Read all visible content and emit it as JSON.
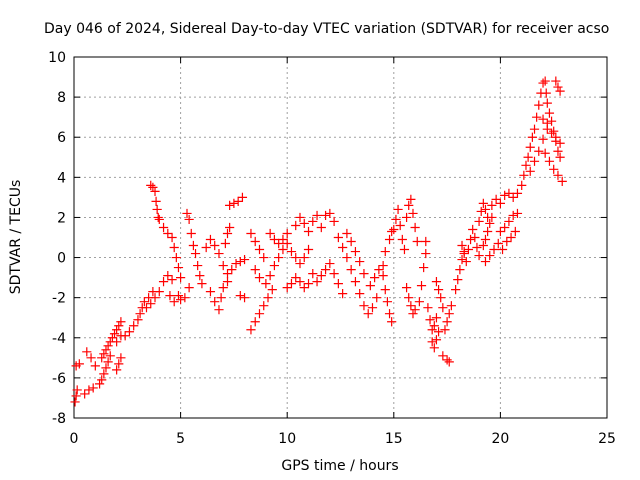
{
  "chart_data": {
    "type": "scatter",
    "title": "Day 046 of 2024, Sidereal Day-to-day VTEC variation (SDTVAR) for receiver acso",
    "xlabel": "GPS time / hours",
    "ylabel": "SDTVAR / TECUs",
    "xlim": [
      0,
      25
    ],
    "ylim": [
      -8,
      10
    ],
    "xticks": [
      0,
      5,
      10,
      15,
      20,
      25
    ],
    "yticks": [
      -8,
      -6,
      -4,
      -2,
      0,
      2,
      4,
      6,
      8,
      10
    ],
    "grid": true,
    "marker": "+",
    "color": "#ff0000",
    "series": [
      {
        "name": "SDTVAR",
        "points": [
          [
            0.05,
            -7.2
          ],
          [
            0.1,
            -6.9
          ],
          [
            0.15,
            -6.6
          ],
          [
            0.1,
            -5.4
          ],
          [
            0.25,
            -5.3
          ],
          [
            0.5,
            -6.8
          ],
          [
            0.7,
            -6.6
          ],
          [
            0.9,
            -6.5
          ],
          [
            0.6,
            -4.7
          ],
          [
            0.8,
            -5.0
          ],
          [
            1.0,
            -5.4
          ],
          [
            1.2,
            -6.3
          ],
          [
            1.3,
            -6.1
          ],
          [
            1.4,
            -5.8
          ],
          [
            1.5,
            -5.5
          ],
          [
            1.6,
            -5.2
          ],
          [
            1.7,
            -4.9
          ],
          [
            1.3,
            -5.0
          ],
          [
            1.4,
            -4.8
          ],
          [
            1.5,
            -4.6
          ],
          [
            1.6,
            -4.4
          ],
          [
            1.7,
            -4.2
          ],
          [
            1.8,
            -4.0
          ],
          [
            1.9,
            -3.8
          ],
          [
            2.0,
            -3.6
          ],
          [
            2.1,
            -3.4
          ],
          [
            2.2,
            -3.2
          ],
          [
            2.0,
            -4.2
          ],
          [
            2.2,
            -3.9
          ],
          [
            2.0,
            -5.6
          ],
          [
            2.1,
            -5.3
          ],
          [
            2.2,
            -5.0
          ],
          [
            2.4,
            -3.9
          ],
          [
            2.6,
            -3.7
          ],
          [
            2.8,
            -3.4
          ],
          [
            3.0,
            -3.1
          ],
          [
            3.1,
            -2.8
          ],
          [
            3.2,
            -2.5
          ],
          [
            3.3,
            -2.2
          ],
          [
            3.4,
            -2.5
          ],
          [
            3.6,
            -2.3
          ],
          [
            3.8,
            -2.0
          ],
          [
            3.5,
            -2.0
          ],
          [
            3.7,
            -1.7
          ],
          [
            3.6,
            3.6
          ],
          [
            3.7,
            3.5
          ],
          [
            3.8,
            3.3
          ],
          [
            3.85,
            2.8
          ],
          [
            3.9,
            2.4
          ],
          [
            3.95,
            2.0
          ],
          [
            4.0,
            1.9
          ],
          [
            4.2,
            1.5
          ],
          [
            4.4,
            1.2
          ],
          [
            4.6,
            1.0
          ],
          [
            4.7,
            0.5
          ],
          [
            4.8,
            0.0
          ],
          [
            4.9,
            -0.5
          ],
          [
            5.0,
            -1.0
          ],
          [
            4.0,
            -1.7
          ],
          [
            4.2,
            -1.2
          ],
          [
            4.4,
            -0.9
          ],
          [
            4.6,
            -1.1
          ],
          [
            4.5,
            -1.9
          ],
          [
            4.7,
            -2.2
          ],
          [
            4.9,
            -1.9
          ],
          [
            5.0,
            -2.1
          ],
          [
            5.2,
            -2.0
          ],
          [
            5.4,
            -1.5
          ],
          [
            5.3,
            2.2
          ],
          [
            5.4,
            1.9
          ],
          [
            5.5,
            1.2
          ],
          [
            5.6,
            0.6
          ],
          [
            5.7,
            0.2
          ],
          [
            5.8,
            -0.4
          ],
          [
            5.9,
            -0.9
          ],
          [
            6.0,
            -1.3
          ],
          [
            6.2,
            0.5
          ],
          [
            6.4,
            0.9
          ],
          [
            6.6,
            0.6
          ],
          [
            6.8,
            0.2
          ],
          [
            6.4,
            -1.7
          ],
          [
            6.6,
            -2.2
          ],
          [
            6.8,
            -2.6
          ],
          [
            6.9,
            -2.0
          ],
          [
            7.0,
            -1.5
          ],
          [
            7.2,
            -1.2
          ],
          [
            7.1,
            0.7
          ],
          [
            7.2,
            1.2
          ],
          [
            7.3,
            1.5
          ],
          [
            7.0,
            -0.4
          ],
          [
            7.2,
            -0.8
          ],
          [
            7.4,
            -0.6
          ],
          [
            7.3,
            2.6
          ],
          [
            7.5,
            2.7
          ],
          [
            7.7,
            2.8
          ],
          [
            7.9,
            3.0
          ],
          [
            7.6,
            -0.3
          ],
          [
            7.8,
            -0.2
          ],
          [
            8.0,
            -0.1
          ],
          [
            7.8,
            -1.9
          ],
          [
            8.0,
            -2.0
          ],
          [
            8.3,
            1.2
          ],
          [
            8.5,
            0.8
          ],
          [
            8.7,
            0.4
          ],
          [
            8.9,
            0.0
          ],
          [
            8.5,
            -0.6
          ],
          [
            8.7,
            -1.0
          ],
          [
            8.3,
            -3.6
          ],
          [
            8.5,
            -3.2
          ],
          [
            8.7,
            -2.8
          ],
          [
            8.9,
            -2.4
          ],
          [
            9.1,
            -2.0
          ],
          [
            9.3,
            -1.6
          ],
          [
            9.0,
            -1.3
          ],
          [
            9.2,
            -0.9
          ],
          [
            9.4,
            -0.4
          ],
          [
            9.6,
            0.0
          ],
          [
            9.8,
            0.4
          ],
          [
            10.0,
            0.7
          ],
          [
            9.2,
            1.2
          ],
          [
            9.4,
            0.9
          ],
          [
            9.6,
            0.7
          ],
          [
            9.8,
            0.9
          ],
          [
            10.0,
            1.2
          ],
          [
            10.0,
            -1.5
          ],
          [
            10.2,
            -1.3
          ],
          [
            10.4,
            -1.0
          ],
          [
            10.6,
            -1.2
          ],
          [
            10.8,
            -1.5
          ],
          [
            11.0,
            -1.3
          ],
          [
            10.2,
            0.3
          ],
          [
            10.4,
            0.0
          ],
          [
            10.6,
            -0.3
          ],
          [
            10.8,
            0.0
          ],
          [
            11.0,
            0.4
          ],
          [
            10.4,
            1.6
          ],
          [
            10.6,
            2.0
          ],
          [
            10.8,
            1.7
          ],
          [
            11.0,
            1.3
          ],
          [
            11.2,
            1.8
          ],
          [
            11.4,
            2.1
          ],
          [
            11.2,
            -0.8
          ],
          [
            11.4,
            -1.2
          ],
          [
            11.6,
            -0.9
          ],
          [
            11.8,
            -0.6
          ],
          [
            11.6,
            1.5
          ],
          [
            11.8,
            2.1
          ],
          [
            12.0,
            2.2
          ],
          [
            12.2,
            1.8
          ],
          [
            12.0,
            -0.3
          ],
          [
            12.2,
            -0.8
          ],
          [
            12.4,
            -1.3
          ],
          [
            12.6,
            -1.8
          ],
          [
            12.4,
            1.0
          ],
          [
            12.6,
            0.5
          ],
          [
            12.8,
            0.0
          ],
          [
            13.0,
            -0.6
          ],
          [
            13.2,
            -1.2
          ],
          [
            13.4,
            -1.8
          ],
          [
            12.8,
            1.2
          ],
          [
            13.0,
            0.8
          ],
          [
            13.2,
            0.3
          ],
          [
            13.4,
            -0.2
          ],
          [
            13.6,
            -0.8
          ],
          [
            13.6,
            -2.4
          ],
          [
            13.8,
            -2.8
          ],
          [
            14.0,
            -2.5
          ],
          [
            14.2,
            -2.0
          ],
          [
            13.9,
            -1.4
          ],
          [
            14.1,
            -1.0
          ],
          [
            14.3,
            -0.6
          ],
          [
            14.5,
            -0.9
          ],
          [
            14.6,
            -1.6
          ],
          [
            14.7,
            -2.2
          ],
          [
            14.8,
            -2.8
          ],
          [
            14.9,
            -3.2
          ],
          [
            14.5,
            -0.4
          ],
          [
            14.6,
            0.3
          ],
          [
            14.8,
            0.9
          ],
          [
            14.9,
            1.3
          ],
          [
            15.0,
            1.4
          ],
          [
            15.1,
            1.9
          ],
          [
            15.2,
            2.4
          ],
          [
            15.3,
            1.6
          ],
          [
            15.4,
            0.9
          ],
          [
            15.5,
            0.4
          ],
          [
            15.6,
            2.0
          ],
          [
            15.7,
            2.6
          ],
          [
            15.8,
            2.9
          ],
          [
            15.9,
            2.2
          ],
          [
            16.0,
            1.5
          ],
          [
            16.1,
            0.8
          ],
          [
            15.6,
            -1.5
          ],
          [
            15.7,
            -2.0
          ],
          [
            15.8,
            -2.4
          ],
          [
            15.9,
            -2.8
          ],
          [
            16.0,
            -2.6
          ],
          [
            16.2,
            -2.2
          ],
          [
            16.3,
            -1.4
          ],
          [
            16.4,
            -0.5
          ],
          [
            16.5,
            0.2
          ],
          [
            16.5,
            0.8
          ],
          [
            16.6,
            -2.5
          ],
          [
            16.7,
            -3.1
          ],
          [
            16.8,
            -3.6
          ],
          [
            16.9,
            -3.4
          ],
          [
            17.0,
            -3.0
          ],
          [
            16.8,
            -4.2
          ],
          [
            16.9,
            -4.5
          ],
          [
            17.0,
            -4.1
          ],
          [
            17.1,
            -3.7
          ],
          [
            17.0,
            -1.2
          ],
          [
            17.1,
            -1.6
          ],
          [
            17.2,
            -2.0
          ],
          [
            17.3,
            -2.5
          ],
          [
            17.3,
            -4.9
          ],
          [
            17.5,
            -5.1
          ],
          [
            17.6,
            -5.2
          ],
          [
            17.4,
            -3.6
          ],
          [
            17.5,
            -3.2
          ],
          [
            17.6,
            -2.8
          ],
          [
            17.7,
            -2.4
          ],
          [
            17.9,
            -1.6
          ],
          [
            18.0,
            -1.1
          ],
          [
            18.1,
            -0.6
          ],
          [
            18.2,
            -0.1
          ],
          [
            18.3,
            0.3
          ],
          [
            18.2,
            0.6
          ],
          [
            18.3,
            0.2
          ],
          [
            18.4,
            -0.2
          ],
          [
            18.5,
            0.4
          ],
          [
            18.6,
            0.9
          ],
          [
            18.7,
            1.4
          ],
          [
            18.8,
            1.0
          ],
          [
            18.9,
            0.5
          ],
          [
            19.0,
            0.1
          ],
          [
            19.0,
            1.8
          ],
          [
            19.1,
            2.3
          ],
          [
            19.2,
            2.7
          ],
          [
            19.3,
            2.4
          ],
          [
            19.4,
            2.0
          ],
          [
            19.2,
            0.6
          ],
          [
            19.3,
            0.9
          ],
          [
            19.4,
            1.3
          ],
          [
            19.5,
            1.7
          ],
          [
            19.6,
            2.0
          ],
          [
            19.3,
            -0.2
          ],
          [
            19.5,
            0.1
          ],
          [
            19.7,
            0.4
          ],
          [
            19.9,
            0.7
          ],
          [
            19.6,
            2.6
          ],
          [
            19.8,
            2.9
          ],
          [
            20.0,
            2.7
          ],
          [
            20.2,
            3.1
          ],
          [
            20.4,
            3.2
          ],
          [
            20.0,
            1.3
          ],
          [
            20.2,
            1.5
          ],
          [
            20.4,
            1.8
          ],
          [
            20.6,
            2.1
          ],
          [
            20.8,
            2.2
          ],
          [
            20.1,
            0.4
          ],
          [
            20.3,
            0.8
          ],
          [
            20.5,
            1.0
          ],
          [
            20.7,
            1.3
          ],
          [
            20.6,
            3.0
          ],
          [
            20.8,
            3.2
          ],
          [
            21.0,
            3.6
          ],
          [
            21.1,
            4.1
          ],
          [
            21.2,
            4.6
          ],
          [
            21.3,
            5.0
          ],
          [
            21.4,
            5.5
          ],
          [
            21.5,
            6.0
          ],
          [
            21.6,
            6.4
          ],
          [
            21.7,
            7.0
          ],
          [
            21.8,
            7.6
          ],
          [
            21.9,
            8.2
          ],
          [
            22.0,
            8.7
          ],
          [
            22.1,
            8.8
          ],
          [
            22.15,
            8.2
          ],
          [
            22.2,
            7.7
          ],
          [
            21.4,
            4.3
          ],
          [
            21.6,
            4.8
          ],
          [
            21.8,
            5.3
          ],
          [
            22.0,
            5.9
          ],
          [
            22.2,
            6.4
          ],
          [
            22.3,
            7.2
          ],
          [
            22.4,
            6.8
          ],
          [
            22.5,
            6.3
          ],
          [
            22.6,
            5.8
          ],
          [
            22.7,
            5.3
          ],
          [
            22.8,
            5.0
          ],
          [
            22.0,
            6.9
          ],
          [
            22.2,
            6.7
          ],
          [
            22.4,
            6.2
          ],
          [
            22.6,
            6.0
          ],
          [
            22.8,
            5.7
          ],
          [
            22.1,
            5.2
          ],
          [
            22.3,
            4.8
          ],
          [
            22.5,
            4.4
          ],
          [
            22.7,
            4.1
          ],
          [
            22.9,
            3.8
          ],
          [
            22.6,
            8.8
          ],
          [
            22.7,
            8.5
          ],
          [
            22.8,
            8.3
          ]
        ]
      }
    ]
  }
}
